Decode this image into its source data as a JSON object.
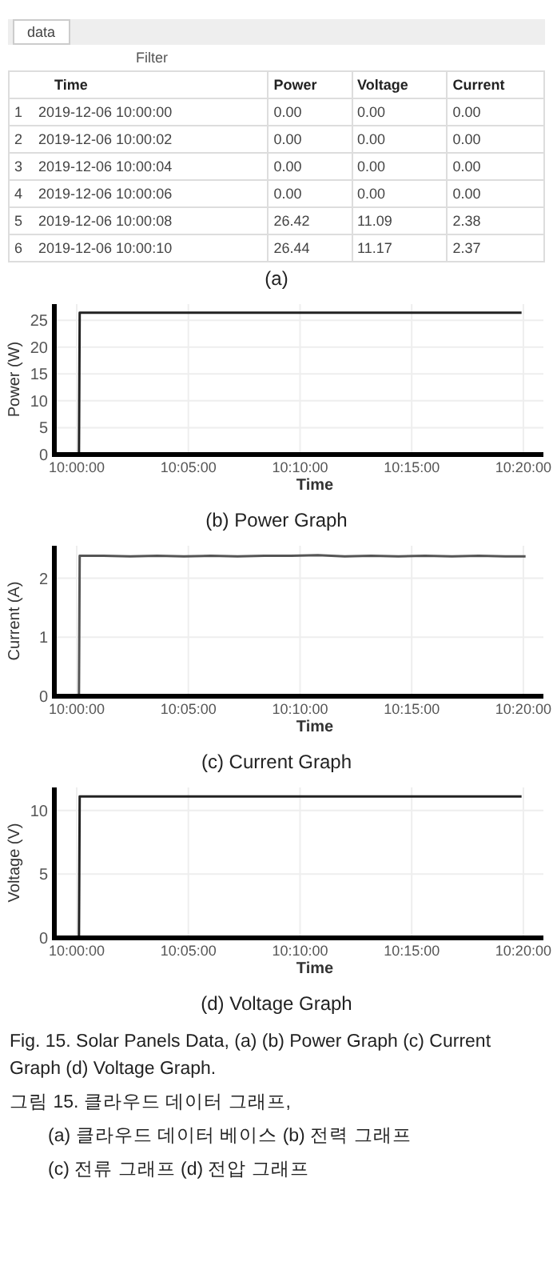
{
  "chart_data": [
    {
      "type": "other",
      "title": "data",
      "categories": [
        "Time",
        "Power",
        "Voltage",
        "Current"
      ],
      "cell_labels": [
        [
          "1    2019-12-06 10:00:00",
          "0.00",
          "0.00",
          "0.00"
        ],
        [
          "2    2019-12-06 10:00:02",
          "0.00",
          "0.00",
          "0.00"
        ],
        [
          "3    2019-12-06 10:00:04",
          "0.00",
          "0.00",
          "0.00"
        ],
        [
          "4    2019-12-06 10:00:06",
          "0.00",
          "0.00",
          "0.00"
        ],
        [
          "5    2019-12-06 10:00:08",
          "26.42",
          "11.09",
          "2.38"
        ],
        [
          "6    2019-12-06 10:00:10",
          "26.44",
          "11.17",
          "2.37"
        ]
      ],
      "annotations": [
        "Filter",
        "(a)"
      ]
    },
    {
      "type": "line",
      "xlabel": "Time",
      "ylabel": "Power (W)",
      "color": "#222222",
      "grid": true,
      "x": [
        10.0,
        10.00167,
        10.00222,
        10.05,
        10.1,
        10.15,
        10.2,
        10.25,
        10.3,
        10.332
      ],
      "values": [
        0,
        0,
        26.4,
        26.4,
        26.4,
        26.4,
        26.4,
        26.4,
        26.4,
        26.4
      ],
      "xlim": [
        9.9833,
        10.3483
      ],
      "ylim": [
        0,
        28
      ],
      "xticks": [
        {
          "value": 10,
          "label": "10:00:00"
        },
        {
          "value": 10.08333,
          "label": "10:05:00"
        },
        {
          "value": 10.16667,
          "label": "10:10:00"
        },
        {
          "value": 10.25,
          "label": "10:15:00"
        },
        {
          "value": 10.33333,
          "label": "10:20:00"
        }
      ],
      "yticks": [
        0,
        5,
        10,
        15,
        20,
        25
      ],
      "annotations": [
        "(b) Power Graph"
      ]
    },
    {
      "type": "line",
      "xlabel": "Time",
      "ylabel": "Current (A)",
      "color": "#555555",
      "grid": true,
      "x": [
        10.0,
        10.00167,
        10.00222,
        10.02,
        10.04,
        10.06,
        10.08,
        10.1,
        10.12,
        10.14,
        10.16,
        10.18,
        10.2,
        10.22,
        10.24,
        10.26,
        10.28,
        10.3,
        10.32,
        10.335
      ],
      "values": [
        0,
        0,
        2.38,
        2.38,
        2.37,
        2.38,
        2.37,
        2.38,
        2.37,
        2.38,
        2.38,
        2.39,
        2.37,
        2.38,
        2.37,
        2.38,
        2.37,
        2.38,
        2.37,
        2.37
      ],
      "xlim": [
        9.9833,
        10.3483
      ],
      "ylim": [
        0,
        2.55
      ],
      "xticks": [
        {
          "value": 10,
          "label": "10:00:00"
        },
        {
          "value": 10.08333,
          "label": "10:05:00"
        },
        {
          "value": 10.16667,
          "label": "10:10:00"
        },
        {
          "value": 10.25,
          "label": "10:15:00"
        },
        {
          "value": 10.33333,
          "label": "10:20:00"
        }
      ],
      "yticks": [
        0,
        1,
        2
      ],
      "annotations": [
        "(c) Current Graph"
      ]
    },
    {
      "type": "line",
      "xlabel": "Time",
      "ylabel": "Voltage (V)",
      "color": "#222222",
      "grid": true,
      "x": [
        10.0,
        10.00167,
        10.00222,
        10.05,
        10.1,
        10.15,
        10.2,
        10.25,
        10.3,
        10.332
      ],
      "values": [
        0,
        0,
        11.1,
        11.1,
        11.1,
        11.1,
        11.1,
        11.1,
        11.1,
        11.1
      ],
      "xlim": [
        9.9833,
        10.3483
      ],
      "ylim": [
        0,
        11.8
      ],
      "xticks": [
        {
          "value": 10,
          "label": "10:00:00"
        },
        {
          "value": 10.08333,
          "label": "10:05:00"
        },
        {
          "value": 10.16667,
          "label": "10:10:00"
        },
        {
          "value": 10.25,
          "label": "10:15:00"
        },
        {
          "value": 10.33333,
          "label": "10:20:00"
        }
      ],
      "yticks": [
        0,
        5,
        10
      ],
      "annotations": [
        "(d) Voltage Graph",
        "Fig. 15. Solar Panels Data, (a) (b) Power Graph (c) Current Graph (d) Voltage Graph.",
        "그림 15. 클라우드 데이터 그래프,",
        "(a) 클라우드 데이터 베이스 (b) 전력 그래프",
        "(c) 전류 그래프 (d) 전압 그래프"
      ]
    }
  ]
}
